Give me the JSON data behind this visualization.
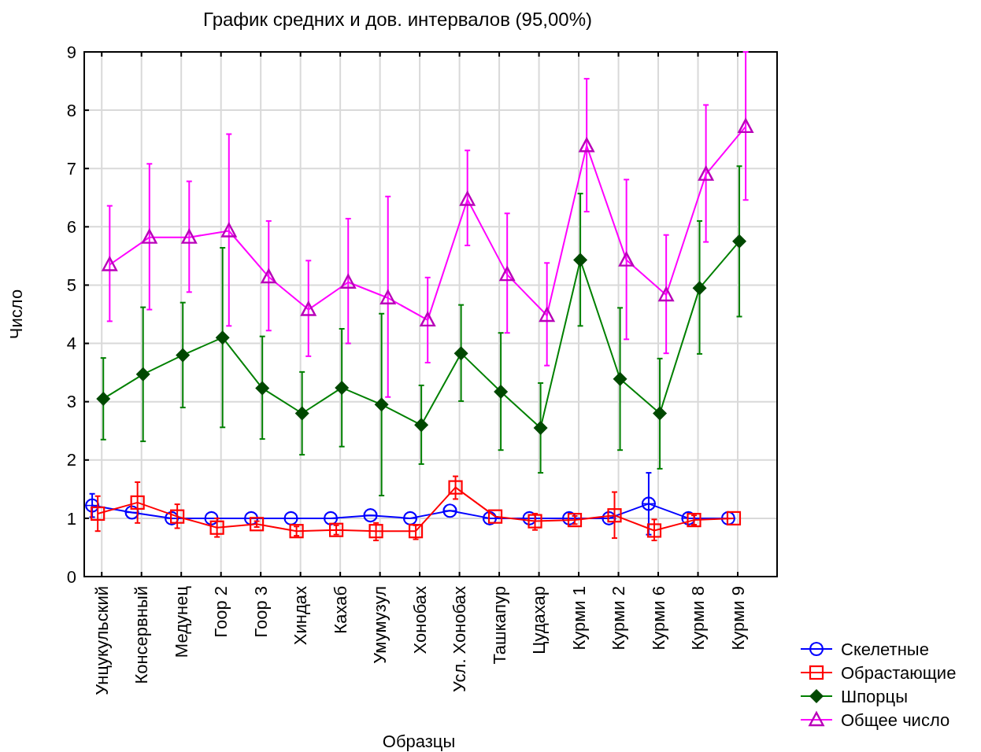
{
  "chart_data": {
    "type": "line",
    "title": "График средних и  дов. интервалов (95,00%)",
    "xlabel": "Образцы",
    "ylabel": "Число",
    "categories": [
      "Унцукульский",
      "Консервный",
      "Медунец",
      "Гоор 2",
      "Гоор 3",
      "Хиндах",
      "Кахаб",
      "Умумузул",
      "Хонобах",
      "Усл. Хонобах",
      "Ташкапур",
      "Цудахар",
      "Курми 1",
      "Курми 2",
      "Курми 6",
      "Курми 8",
      "Курми 9"
    ],
    "ylim": [
      0,
      9
    ],
    "yticks": [
      0,
      1,
      2,
      3,
      4,
      5,
      6,
      7,
      8,
      9
    ],
    "grid": true,
    "legend": "bottom right",
    "line_style": "solid",
    "series": [
      {
        "name": "Скелетные",
        "color": "#0000ff",
        "marker": "circle",
        "values": [
          1.22,
          1.1,
          1.0,
          1.0,
          1.0,
          1.0,
          1.0,
          1.05,
          1.0,
          1.13,
          1.0,
          1.0,
          1.0,
          1.0,
          1.25,
          1.0,
          1.0
        ],
        "errors": [
          [
            1.02,
            1.42
          ],
          null,
          null,
          null,
          null,
          null,
          null,
          null,
          null,
          null,
          null,
          null,
          null,
          null,
          [
            0.72,
            1.78
          ],
          null,
          null
        ]
      },
      {
        "name": "Обрастающие",
        "color": "#ff0000",
        "marker": "square",
        "values": [
          1.08,
          1.27,
          1.03,
          0.84,
          0.9,
          0.78,
          0.8,
          0.78,
          0.78,
          1.53,
          1.03,
          0.95,
          0.97,
          1.05,
          0.79,
          0.97,
          1.0
        ],
        "errors": [
          [
            0.78,
            1.38
          ],
          [
            0.92,
            1.62
          ],
          [
            0.83,
            1.24
          ],
          [
            0.68,
            1.0
          ],
          [
            0.85,
            0.95
          ],
          [
            0.7,
            0.86
          ],
          [
            0.72,
            0.88
          ],
          [
            0.62,
            0.92
          ],
          [
            0.64,
            0.88
          ],
          [
            1.33,
            1.72
          ],
          null,
          [
            0.8,
            1.08
          ],
          [
            0.9,
            1.04
          ],
          [
            0.66,
            1.45
          ],
          [
            0.62,
            0.98
          ],
          [
            0.89,
            1.05
          ],
          null
        ]
      },
      {
        "name": "Шпорцы",
        "color": "#008000",
        "marker": "diamond",
        "values": [
          3.05,
          3.47,
          3.8,
          4.1,
          3.23,
          2.8,
          3.24,
          2.95,
          2.6,
          3.83,
          3.17,
          2.55,
          5.43,
          3.39,
          2.8,
          4.95,
          5.75
        ],
        "errors": [
          [
            2.35,
            3.75
          ],
          [
            2.32,
            4.62
          ],
          [
            2.9,
            4.7
          ],
          [
            2.56,
            5.64
          ],
          [
            2.36,
            4.12
          ],
          [
            2.09,
            3.51
          ],
          [
            2.23,
            4.25
          ],
          [
            1.39,
            4.51
          ],
          [
            1.93,
            3.28
          ],
          [
            3.01,
            4.66
          ],
          [
            2.17,
            4.18
          ],
          [
            1.78,
            3.32
          ],
          [
            4.3,
            6.57
          ],
          [
            2.17,
            4.61
          ],
          [
            1.85,
            3.74
          ],
          [
            3.82,
            6.1
          ],
          [
            4.46,
            7.04
          ]
        ]
      },
      {
        "name": "Общее число",
        "color": "#ff00ff",
        "marker": "triangle",
        "values": [
          5.35,
          5.82,
          5.82,
          5.93,
          5.14,
          4.58,
          5.05,
          4.78,
          4.4,
          6.47,
          5.18,
          4.48,
          7.39,
          5.43,
          4.83,
          6.9,
          7.72
        ],
        "errors": [
          [
            4.38,
            6.36
          ],
          [
            4.58,
            7.08
          ],
          [
            4.88,
            6.78
          ],
          [
            4.3,
            7.59
          ],
          [
            4.22,
            6.1
          ],
          [
            3.78,
            5.42
          ],
          [
            4.0,
            6.14
          ],
          [
            3.08,
            6.52
          ],
          [
            3.67,
            5.13
          ],
          [
            5.68,
            7.31
          ],
          [
            4.18,
            6.23
          ],
          [
            3.62,
            5.38
          ],
          [
            6.26,
            8.54
          ],
          [
            4.07,
            6.81
          ],
          [
            3.83,
            5.86
          ],
          [
            5.74,
            8.09
          ],
          [
            6.46,
            9.0
          ]
        ]
      }
    ]
  }
}
